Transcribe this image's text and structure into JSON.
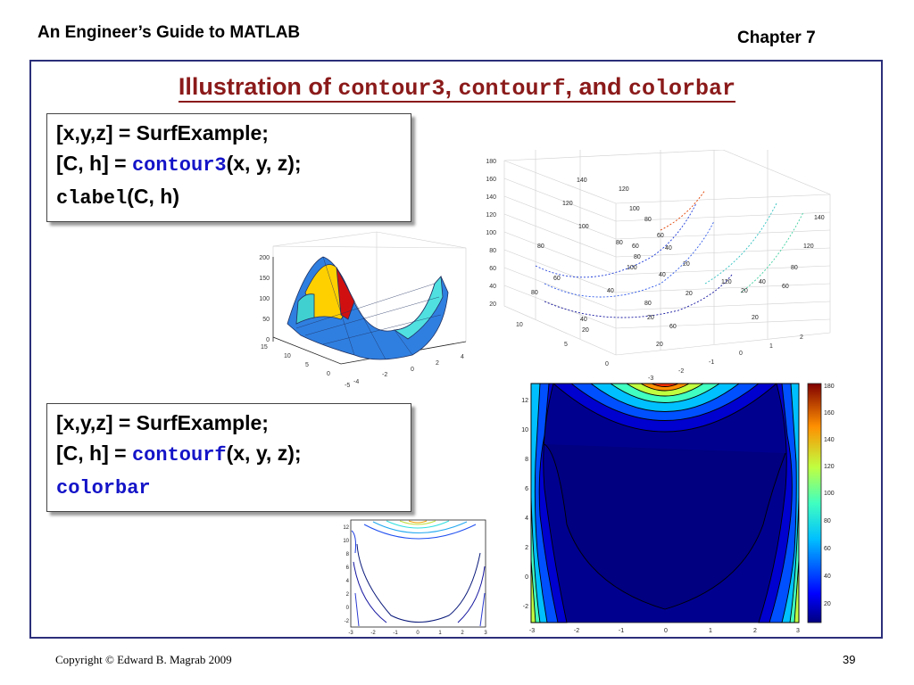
{
  "header": {
    "left": "An Engineer’s Guide to MATLAB",
    "right": "Chapter 7"
  },
  "title": {
    "prefix": "Illustration of ",
    "k1": "contour3",
    "sep1": ", ",
    "k2": "contourf",
    "sep2": ", ",
    "and": "and ",
    "k3": "colorbar"
  },
  "box1": {
    "line1": "[x,y,z] = SurfExample;",
    "l2_pre": "[C, h] = ",
    "l2_kw": "contour3",
    "l2_post": "(x, y, z);",
    "l3_mono": "clabel",
    "l3_post": "(C, h)"
  },
  "box2": {
    "line1": "[x,y,z] = SurfExample;",
    "l2_pre": "[C, h] = ",
    "l2_kw": "contourf",
    "l2_post": "(x, y, z);",
    "l3_kw": "colorbar"
  },
  "surf_plot": {
    "z_ticks": [
      "200",
      "150",
      "100",
      "50",
      "0"
    ],
    "y_ticks": [
      "15",
      "10",
      "5",
      "0",
      "-5"
    ],
    "x_ticks": [
      "-4",
      "-2",
      "0",
      "2",
      "4"
    ]
  },
  "contour3_plot": {
    "z_ticks": [
      "180",
      "160",
      "140",
      "120",
      "100",
      "80",
      "60",
      "40",
      "20"
    ],
    "y_ticks": [
      "10",
      "5",
      "0"
    ],
    "x_ticks": [
      "-3",
      "-2",
      "-1",
      "0",
      "1",
      "2"
    ],
    "labels": [
      "140",
      "120",
      "120",
      "100",
      "100",
      "80",
      "80",
      "80",
      "60",
      "40",
      "20",
      "20",
      "40",
      "60",
      "80",
      "100",
      "120",
      "140",
      "20",
      "40",
      "60",
      "80",
      "20",
      "40",
      "20",
      "40",
      "60",
      "80",
      "20",
      "20",
      "60",
      "80",
      "120"
    ]
  },
  "contour_small": {
    "y_ticks": [
      "12",
      "10",
      "8",
      "6",
      "4",
      "2",
      "0",
      "-2"
    ],
    "x_ticks": [
      "-3",
      "-2",
      "-1",
      "0",
      "1",
      "2",
      "3"
    ]
  },
  "contourf_plot": {
    "y_ticks": [
      "12",
      "10",
      "8",
      "6",
      "4",
      "2",
      "0",
      "-2"
    ],
    "x_ticks": [
      "-3",
      "-2",
      "-1",
      "0",
      "1",
      "2",
      "3"
    ],
    "colorbar_ticks": [
      "180",
      "160",
      "140",
      "120",
      "100",
      "80",
      "60",
      "40",
      "20"
    ]
  },
  "footer": {
    "copyright": "Copyright © Edward B. Magrab 2009",
    "page": "39"
  }
}
